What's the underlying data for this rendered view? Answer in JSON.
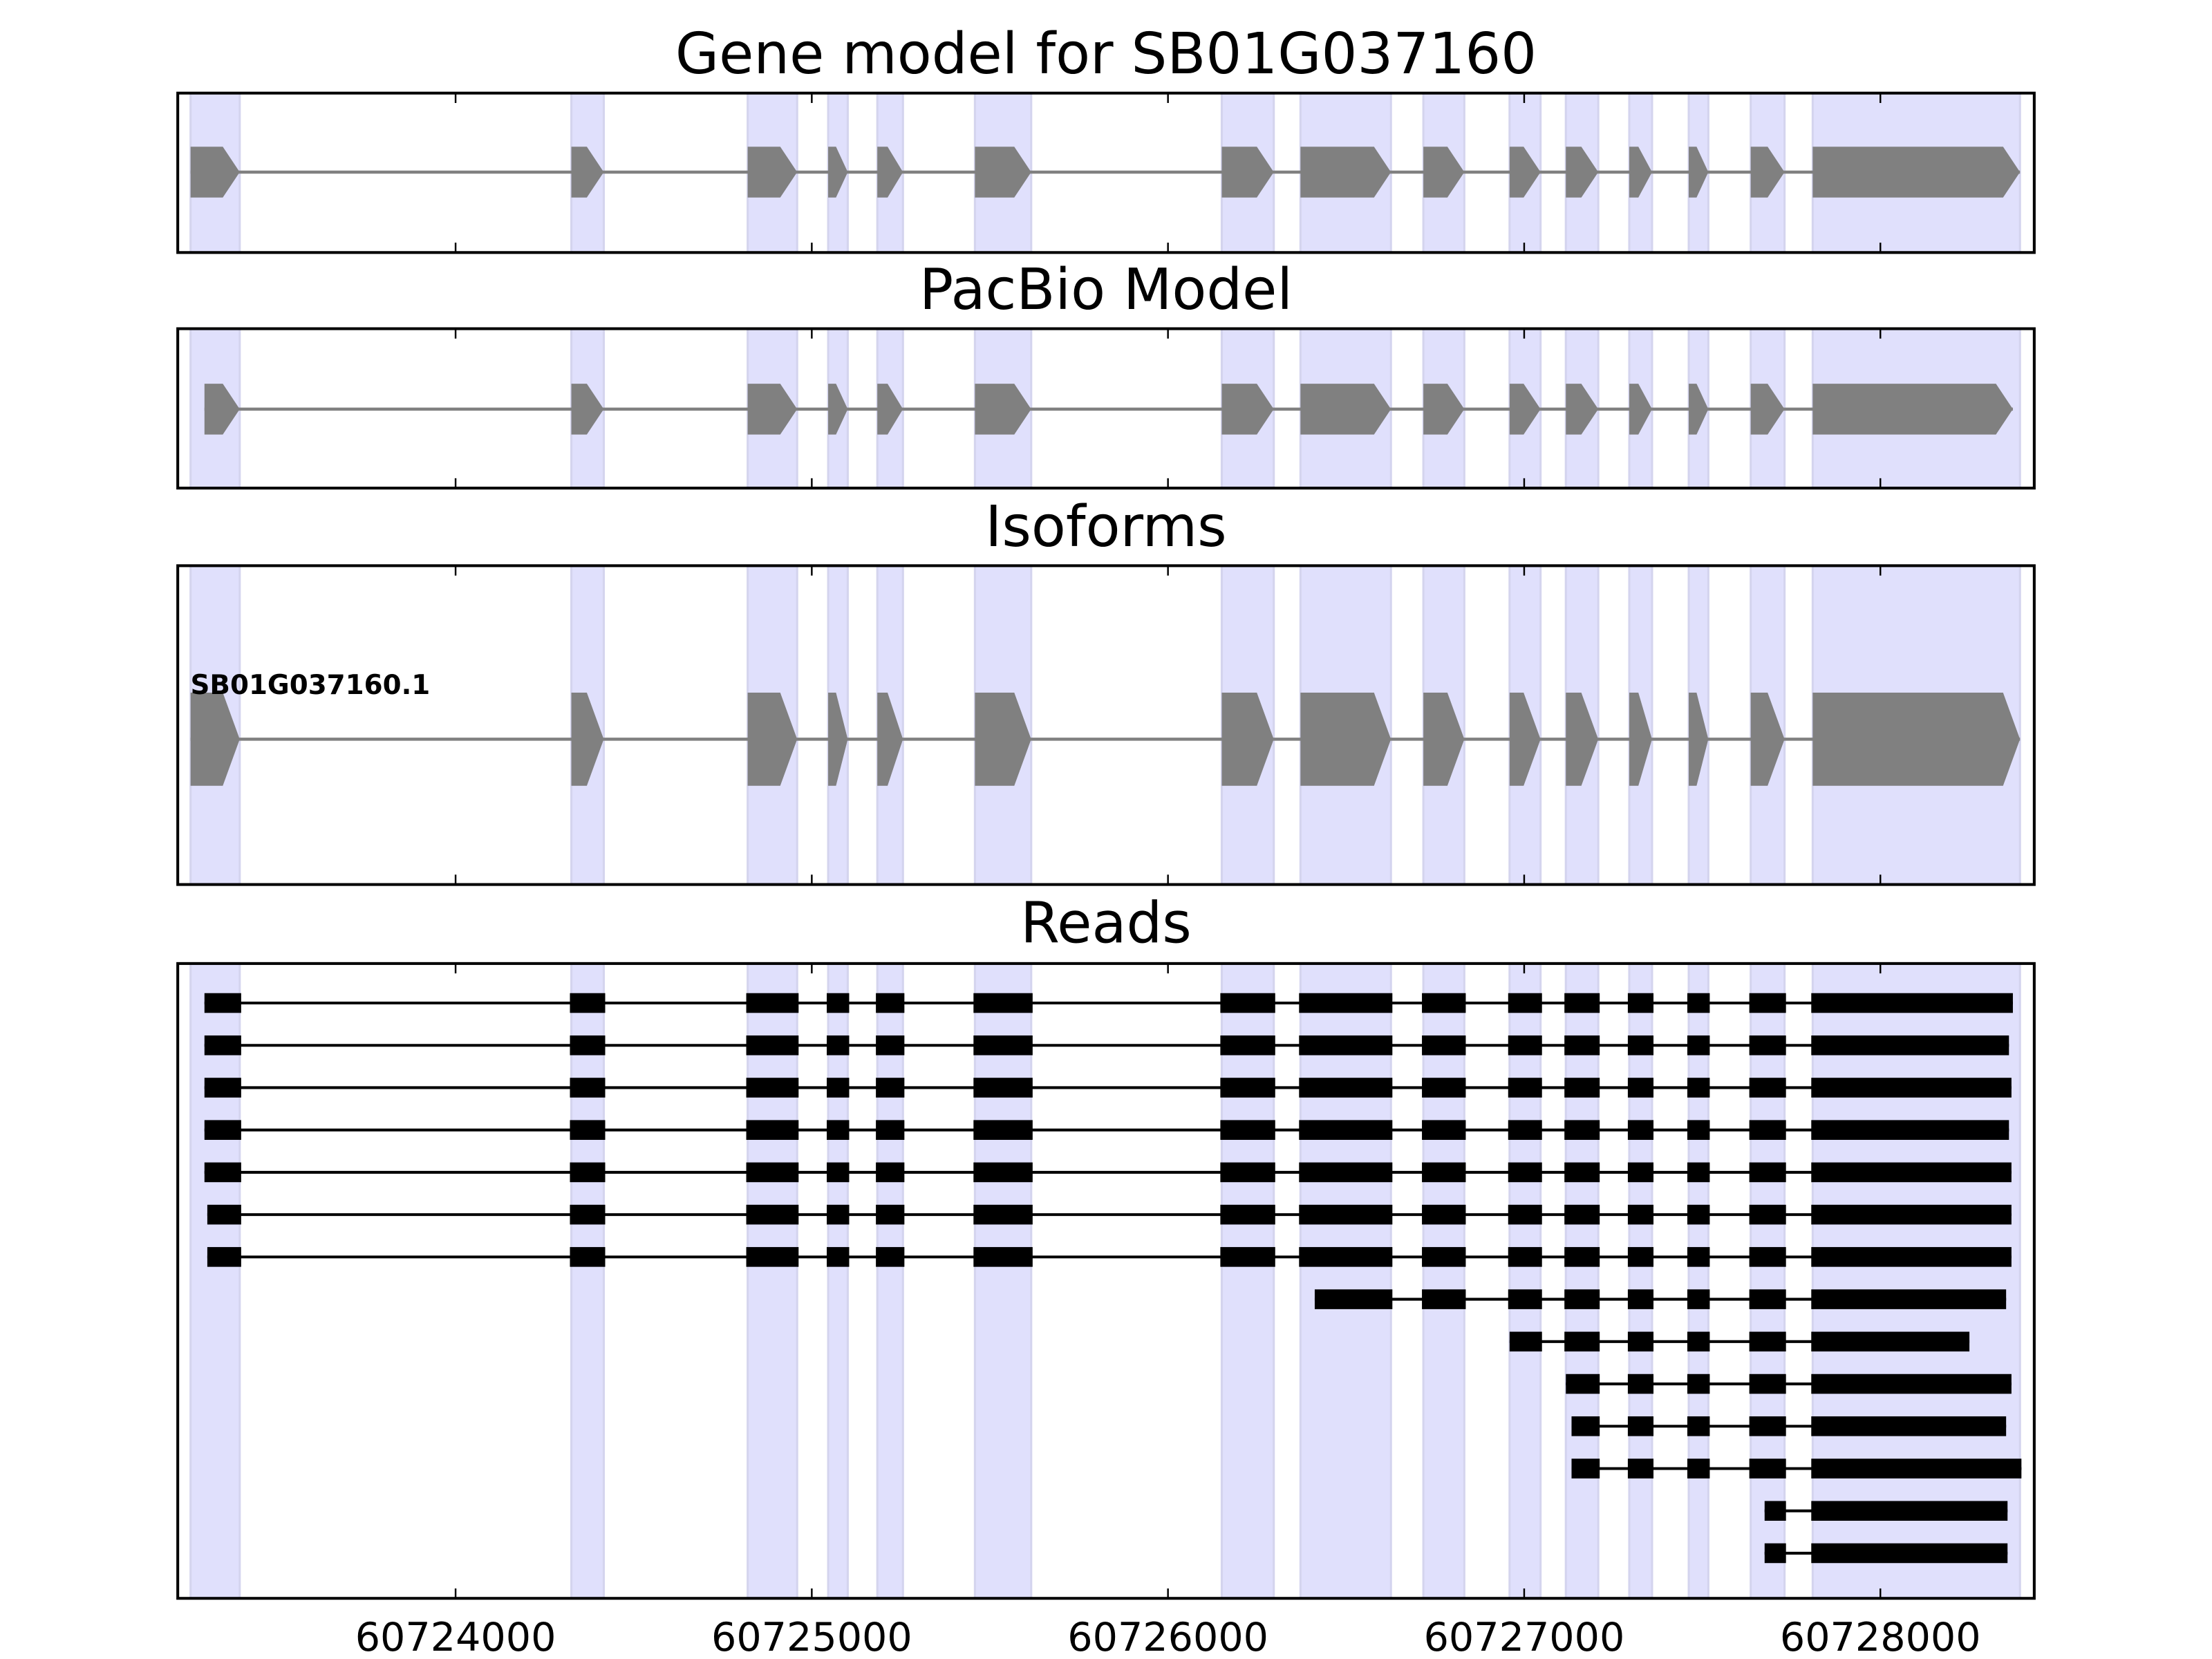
{
  "chart_data": {
    "type": "gene-structure",
    "xlim": [
      60723220,
      60728432
    ],
    "xticks": [
      60724000,
      60725000,
      60726000,
      60727000,
      60728000
    ],
    "xtick_labels": [
      "60724000",
      "60725000",
      "60726000",
      "60727000",
      "60728000"
    ],
    "colors": {
      "shade": "#e0e0fc",
      "shade_edge": "#d4d4ee",
      "model": "#808080",
      "read": "#000000"
    },
    "shaded_exons": [
      [
        60723256,
        60723394
      ],
      [
        60724325,
        60724416
      ],
      [
        60724820,
        60724959
      ],
      [
        60725046,
        60725101
      ],
      [
        60725184,
        60725256
      ],
      [
        60725458,
        60725616
      ],
      [
        60726151,
        60726297
      ],
      [
        60726372,
        60726626
      ],
      [
        60726717,
        60726832
      ],
      [
        60726959,
        60727046
      ],
      [
        60727117,
        60727208
      ],
      [
        60727295,
        60727359
      ],
      [
        60727462,
        60727517
      ],
      [
        60727636,
        60727731
      ],
      [
        60727810,
        60728392
      ]
    ],
    "panels": [
      {
        "title": "Gene model for SB01G037160",
        "kind": "model",
        "start": 60723248,
        "end": 60728404
      },
      {
        "title": "PacBio Model",
        "kind": "model",
        "start": 60723295,
        "end": 60728372
      },
      {
        "title": "Isoforms",
        "kind": "isoform",
        "isoform_label": "SB01G037160.1",
        "start": 60723248,
        "end": 60728400
      },
      {
        "title": "Reads",
        "kind": "reads"
      }
    ],
    "reads": [
      [
        60723295,
        60728372
      ],
      [
        60723295,
        60728361
      ],
      [
        60723295,
        60728368
      ],
      [
        60723295,
        60728361
      ],
      [
        60723295,
        60728368
      ],
      [
        60723303,
        60728368
      ],
      [
        60723303,
        60728368
      ],
      [
        60726412,
        60728353
      ],
      [
        60726959,
        60728250
      ],
      [
        60727117,
        60728368
      ],
      [
        60727133,
        60728353
      ],
      [
        60727133,
        60728396
      ],
      [
        60727675,
        60728357
      ],
      [
        60727675,
        60728357
      ]
    ]
  }
}
